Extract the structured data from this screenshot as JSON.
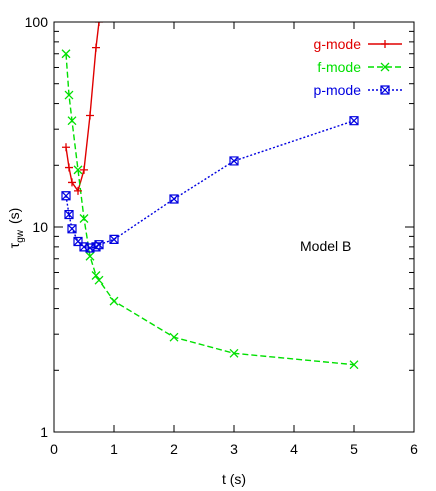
{
  "chart_data": {
    "type": "line",
    "title": "",
    "xlabel": "t (s)",
    "ylabel_main": "τ",
    "ylabel_sub": "gw",
    "ylabel_unit": "(s)",
    "xlim": [
      0,
      6
    ],
    "ylim": [
      1,
      100
    ],
    "yscale": "log",
    "x_ticks": [
      0,
      1,
      2,
      3,
      4,
      5,
      6
    ],
    "y_ticks": [
      1,
      10,
      100
    ],
    "grid": false,
    "legend_position": "top-right",
    "annotation": "Model B",
    "series": [
      {
        "name": "g-mode",
        "color": "#e00000",
        "dash": "solid",
        "marker": "plus",
        "x": [
          0.2,
          0.25,
          0.3,
          0.4,
          0.5,
          0.6,
          0.7,
          0.75
        ],
        "y": [
          24.5,
          19.5,
          16.5,
          15.0,
          19.0,
          35.0,
          75.0,
          100.0
        ]
      },
      {
        "name": "f-mode",
        "color": "#00e000",
        "dash": "dashed",
        "marker": "x",
        "x": [
          0.2,
          0.25,
          0.3,
          0.4,
          0.5,
          0.6,
          0.7,
          0.75,
          1,
          2,
          3,
          5
        ],
        "y": [
          70,
          44,
          33,
          19,
          11,
          7.2,
          5.8,
          5.5,
          4.35,
          2.9,
          2.42,
          2.13
        ]
      },
      {
        "name": "p-mode",
        "color": "#0000e0",
        "dash": "dotted",
        "marker": "boxx",
        "x": [
          0.2,
          0.25,
          0.3,
          0.4,
          0.5,
          0.6,
          0.7,
          0.75,
          1,
          2,
          3,
          5
        ],
        "y": [
          14.2,
          11.5,
          9.8,
          8.5,
          8.0,
          7.9,
          8.0,
          8.2,
          8.7,
          13.7,
          21.0,
          33.0
        ]
      }
    ]
  }
}
